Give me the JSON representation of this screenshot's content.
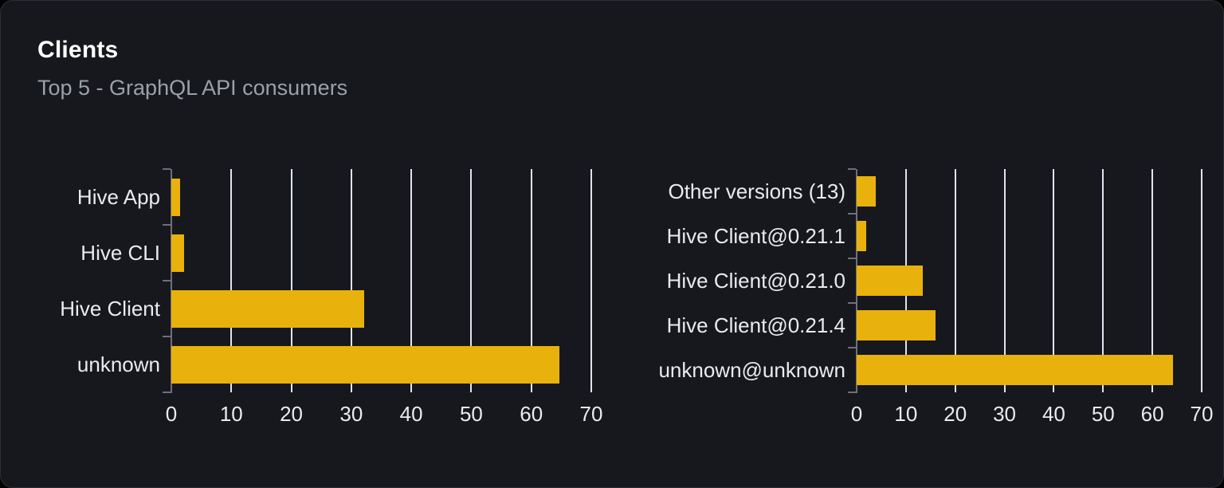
{
  "card": {
    "title": "Clients",
    "subtitle": "Top 5 - GraphQL API consumers"
  },
  "colors": {
    "card_bg": "#16181d",
    "card_border": "#2b2e35",
    "title_text": "#ffffff",
    "subtitle_text": "#9ba1a9",
    "axis_text": "#e9ebee",
    "axis": "#6e7079",
    "grid": "#dfe4ee",
    "bar": "#e9b10b"
  },
  "chart_data": [
    {
      "type": "bar",
      "orientation": "horizontal",
      "name": "clients-by-name",
      "title": "",
      "xlabel": "",
      "ylabel": "",
      "categories": [
        "Hive App",
        "Hive CLI",
        "Hive Client",
        "unknown"
      ],
      "values": [
        1.4,
        2.1,
        32.2,
        64.7
      ],
      "xlim": [
        0,
        70
      ],
      "xticks": [
        0,
        10,
        20,
        30,
        40,
        50,
        60,
        70
      ],
      "grid": true,
      "legend": false
    },
    {
      "type": "bar",
      "orientation": "horizontal",
      "name": "clients-by-version",
      "title": "",
      "xlabel": "",
      "ylabel": "",
      "categories": [
        "Other versions (13)",
        "Hive Client@0.21.1",
        "Hive Client@0.21.0",
        "Hive Client@0.21.4",
        "unknown@unknown"
      ],
      "values": [
        3.9,
        1.9,
        13.4,
        16,
        64.2
      ],
      "xlim": [
        0,
        70
      ],
      "xticks": [
        0,
        10,
        20,
        30,
        40,
        50,
        60,
        70
      ],
      "grid": true,
      "legend": false
    }
  ]
}
